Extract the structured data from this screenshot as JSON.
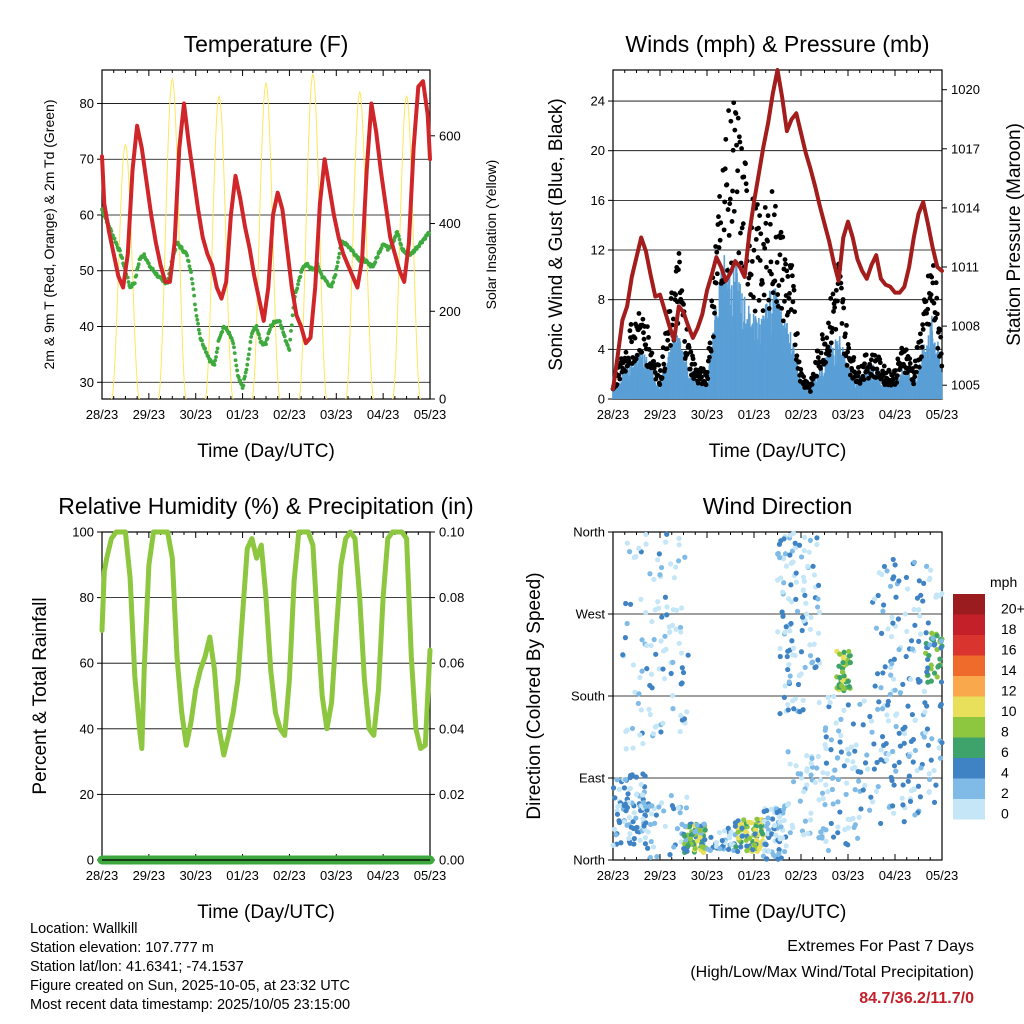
{
  "panels": [
    {
      "id": "temperature",
      "title": "Temperature (F)",
      "xlabel": "Time (Day/UTC)",
      "ylabel_left": "2m & 9m T (Red, Orange) & 2m Td (Green)",
      "ylabel_right": "Solar Insolation (Yellow)",
      "yticks_left": [
        "30",
        "40",
        "50",
        "60",
        "70",
        "80"
      ],
      "yticks_right": [
        "0",
        "200",
        "400",
        "600"
      ]
    },
    {
      "id": "winds",
      "title": "Winds (mph) & Pressure (mb)",
      "xlabel": "Time (Day/UTC)",
      "ylabel_left": "Sonic Wind & Gust (Blue, Black)",
      "ylabel_right": "Station Pressure (Maroon)",
      "yticks_left": [
        "0",
        "4",
        "8",
        "12",
        "16",
        "20",
        "24"
      ],
      "yticks_right": [
        "1005",
        "1008",
        "1011",
        "1014",
        "1017",
        "1020"
      ]
    },
    {
      "id": "humidity",
      "title": "Relative Humidity (%) & Precipitation (in)",
      "xlabel": "Time (Day/UTC)",
      "ylabel_left": "Percent & Total Rainfall",
      "ylabel_right": "",
      "yticks_left": [
        "0",
        "20",
        "40",
        "60",
        "80",
        "100"
      ],
      "yticks_right": [
        "0.00",
        "0.02",
        "0.04",
        "0.06",
        "0.08",
        "0.10"
      ]
    },
    {
      "id": "direction",
      "title": "Wind Direction",
      "xlabel": "Time (Day/UTC)",
      "ylabel_left": "Direction (Colored By Speed)",
      "ylabel_right": "",
      "yticks_left": [
        "North",
        "East",
        "South",
        "West",
        "North"
      ],
      "yticks_right": []
    }
  ],
  "chart_data": [
    {
      "type": "line",
      "title": "Temperature (F)",
      "x_ticks": [
        "28/23",
        "29/23",
        "30/23",
        "01/23",
        "02/23",
        "03/23",
        "04/23",
        "05/23"
      ],
      "xlim": [
        0,
        7
      ],
      "ylim": [
        27,
        86
      ],
      "y2lim": [
        0,
        750
      ],
      "series": [
        {
          "name": "2m T",
          "color": "#d0262a",
          "axis": "left",
          "x": [
            0,
            0.05,
            0.15,
            0.25,
            0.35,
            0.45,
            0.55,
            0.65,
            0.75,
            0.85,
            0.95,
            1.05,
            1.15,
            1.25,
            1.35,
            1.45,
            1.55,
            1.65,
            1.75,
            1.85,
            1.95,
            2.05,
            2.15,
            2.25,
            2.35,
            2.45,
            2.55,
            2.65,
            2.75,
            2.85,
            2.95,
            3.05,
            3.15,
            3.25,
            3.35,
            3.45,
            3.55,
            3.65,
            3.75,
            3.85,
            3.95,
            4.05,
            4.15,
            4.25,
            4.35,
            4.45,
            4.55,
            4.65,
            4.75,
            4.85,
            4.95,
            5.05,
            5.15,
            5.25,
            5.35,
            5.45,
            5.55,
            5.65,
            5.75,
            5.85,
            5.95,
            6.05,
            6.15,
            6.25,
            6.35,
            6.45,
            6.55,
            6.65,
            6.75,
            6.85,
            6.95,
            7
          ],
          "values": [
            70.5,
            62,
            57,
            53,
            49,
            47,
            53,
            68,
            76,
            72,
            66,
            60,
            55,
            51,
            48,
            48,
            55,
            72,
            80,
            73,
            67,
            61,
            56,
            53,
            51,
            47,
            45,
            48,
            60,
            67,
            63,
            58,
            54,
            49,
            45,
            41,
            47,
            60,
            64,
            61,
            54,
            47,
            42,
            40,
            37,
            38,
            47,
            62,
            70,
            65,
            60,
            56,
            53,
            51,
            49,
            47,
            52,
            68,
            80,
            75,
            68,
            62,
            56,
            53,
            50,
            48,
            55,
            72,
            83,
            84,
            78,
            70
          ]
        },
        {
          "name": "2m Td",
          "color": "#3eaa3e",
          "axis": "left",
          "x": [
            0,
            0.1,
            0.2,
            0.3,
            0.4,
            0.5,
            0.6,
            0.7,
            0.8,
            0.9,
            1.0,
            1.1,
            1.2,
            1.3,
            1.4,
            1.5,
            1.6,
            1.7,
            1.8,
            1.9,
            2.0,
            2.1,
            2.2,
            2.3,
            2.4,
            2.5,
            2.6,
            2.7,
            2.8,
            2.9,
            3.0,
            3.1,
            3.2,
            3.3,
            3.4,
            3.5,
            3.6,
            3.7,
            3.8,
            3.9,
            4.0,
            4.1,
            4.2,
            4.3,
            4.4,
            4.5,
            4.6,
            4.7,
            4.8,
            4.9,
            5.0,
            5.1,
            5.2,
            5.3,
            5.4,
            5.5,
            5.6,
            5.7,
            5.8,
            5.9,
            6.0,
            6.1,
            6.2,
            6.3,
            6.4,
            6.5,
            6.6,
            6.7,
            6.8,
            6.9,
            7.0
          ],
          "values": [
            61,
            59,
            57,
            55,
            53,
            50,
            47,
            48,
            52,
            53,
            51,
            50,
            49,
            48,
            48,
            52,
            55,
            54,
            53,
            50,
            43,
            38,
            36,
            34,
            33,
            38,
            40,
            39,
            37,
            31,
            29,
            33,
            39,
            40,
            37,
            37,
            40,
            41,
            41,
            38,
            36,
            45,
            48,
            51,
            51,
            50,
            51,
            49,
            48,
            47,
            50,
            55,
            55,
            54,
            53,
            52,
            52,
            51,
            51,
            53,
            55,
            54,
            55,
            57,
            54,
            53,
            53,
            54,
            55,
            56,
            57
          ]
        },
        {
          "name": "Solar Insolation",
          "color": "#ffe65a",
          "axis": "right",
          "peaks_x": [
            0.5,
            1.5,
            2.5,
            3.5,
            4.5,
            5.5,
            6.5
          ],
          "peaks_y": [
            580,
            730,
            690,
            720,
            740,
            700,
            690
          ]
        }
      ]
    },
    {
      "type": "line",
      "title": "Winds (mph) & Pressure (mb)",
      "x_ticks": [
        "28/23",
        "29/23",
        "30/23",
        "01/23",
        "02/23",
        "03/23",
        "04/23",
        "05/23"
      ],
      "xlim": [
        0,
        7
      ],
      "ylim": [
        0,
        26.5
      ],
      "y2lim": [
        1004.3,
        1021.0
      ],
      "series": [
        {
          "name": "Station Pressure",
          "color": "#a31d1d",
          "axis": "right",
          "x": [
            0,
            0.1,
            0.2,
            0.3,
            0.4,
            0.5,
            0.6,
            0.7,
            0.8,
            0.9,
            1.0,
            1.1,
            1.2,
            1.3,
            1.4,
            1.5,
            1.6,
            1.7,
            1.8,
            1.9,
            2.0,
            2.1,
            2.2,
            2.3,
            2.4,
            2.5,
            2.6,
            2.7,
            2.8,
            2.9,
            3.0,
            3.1,
            3.2,
            3.3,
            3.4,
            3.5,
            3.6,
            3.7,
            3.8,
            3.9,
            4.0,
            4.1,
            4.2,
            4.3,
            4.4,
            4.5,
            4.6,
            4.7,
            4.8,
            4.9,
            5.0,
            5.1,
            5.2,
            5.3,
            5.4,
            5.5,
            5.6,
            5.7,
            5.8,
            5.9,
            6.0,
            6.1,
            6.2,
            6.3,
            6.4,
            6.5,
            6.6,
            6.7,
            6.8,
            6.9,
            7.0
          ],
          "values": [
            1004.8,
            1006.5,
            1008.3,
            1009.0,
            1010.5,
            1011.5,
            1012.5,
            1011.8,
            1010.6,
            1009.5,
            1009.6,
            1008.8,
            1008.0,
            1007.3,
            1009.0,
            1008.7,
            1008.0,
            1007.4,
            1007.9,
            1008.6,
            1009.8,
            1010.6,
            1011.5,
            1011.0,
            1010.3,
            1010.7,
            1011.3,
            1011.0,
            1010.5,
            1012.7,
            1014.3,
            1015.7,
            1017.1,
            1018.3,
            1019.8,
            1021.0,
            1019.6,
            1017.9,
            1018.5,
            1018.8,
            1017.8,
            1016.8,
            1016.0,
            1015.1,
            1014.1,
            1013.2,
            1012.3,
            1011.2,
            1010.3,
            1012.5,
            1013.3,
            1012.5,
            1011.4,
            1010.8,
            1010.4,
            1011.1,
            1011.6,
            1010.4,
            1010.1,
            1010.0,
            1009.7,
            1009.7,
            1010.0,
            1011.0,
            1012.5,
            1013.7,
            1014.3,
            1013.2,
            1012.0,
            1011.0,
            1010.8
          ]
        },
        {
          "name": "Sonic Wind",
          "color": "#5a9fd6",
          "axis": "left",
          "x": [
            0,
            0.2,
            0.4,
            0.6,
            0.8,
            1.0,
            1.2,
            1.4,
            1.6,
            1.8,
            2.0,
            2.2,
            2.4,
            2.6,
            2.8,
            3.0,
            3.2,
            3.4,
            3.6,
            3.8,
            4.0,
            4.2,
            4.4,
            4.6,
            4.8,
            5.0,
            5.2,
            5.4,
            5.6,
            5.8,
            6.0,
            6.2,
            6.4,
            6.6,
            6.8,
            7.0
          ],
          "values": [
            0.5,
            1.5,
            2.5,
            3,
            2,
            1,
            3,
            4,
            2,
            1,
            1,
            6,
            9,
            8,
            6,
            5,
            5,
            7,
            5,
            4,
            1,
            0.5,
            2,
            3,
            4,
            2,
            1,
            2,
            2,
            1,
            1,
            2,
            1,
            3,
            5,
            2
          ]
        },
        {
          "name": "Gust",
          "color": "#000000",
          "axis": "left",
          "x": [
            0,
            0.2,
            0.4,
            0.6,
            0.8,
            1.0,
            1.2,
            1.4,
            1.6,
            1.8,
            2.0,
            2.2,
            2.4,
            2.6,
            2.8,
            3.0,
            3.2,
            3.4,
            3.6,
            3.8,
            4.0,
            4.2,
            4.4,
            4.6,
            4.8,
            5.0,
            5.2,
            5.4,
            5.6,
            5.8,
            6.0,
            6.2,
            6.4,
            6.6,
            6.8,
            7.0
          ],
          "values": [
            1,
            3,
            5,
            6,
            4,
            2,
            6,
            10,
            4,
            2,
            2,
            12,
            18,
            20,
            16,
            13,
            12,
            14,
            11,
            9,
            2,
            1,
            4,
            6,
            10,
            4,
            2,
            3,
            3,
            2,
            2,
            4,
            2,
            6,
            10,
            4
          ]
        }
      ]
    },
    {
      "type": "line",
      "title": "Relative Humidity (%) & Precipitation (in)",
      "x_ticks": [
        "28/23",
        "29/23",
        "30/23",
        "01/23",
        "02/23",
        "03/23",
        "04/23",
        "05/23"
      ],
      "xlim": [
        0,
        7
      ],
      "ylim": [
        0,
        100
      ],
      "y2lim": [
        0,
        0.1
      ],
      "series": [
        {
          "name": "Relative Humidity",
          "color": "#8dc63f",
          "axis": "left",
          "x": [
            0,
            0.05,
            0.1,
            0.2,
            0.3,
            0.4,
            0.5,
            0.6,
            0.7,
            0.8,
            0.85,
            0.9,
            1.0,
            1.1,
            1.2,
            1.3,
            1.4,
            1.5,
            1.6,
            1.7,
            1.8,
            1.9,
            2.0,
            2.1,
            2.2,
            2.3,
            2.4,
            2.5,
            2.6,
            2.7,
            2.8,
            2.9,
            3.0,
            3.1,
            3.2,
            3.3,
            3.4,
            3.5,
            3.6,
            3.7,
            3.8,
            3.9,
            4.0,
            4.1,
            4.2,
            4.3,
            4.4,
            4.5,
            4.6,
            4.7,
            4.8,
            4.9,
            5.0,
            5.1,
            5.2,
            5.3,
            5.4,
            5.5,
            5.6,
            5.7,
            5.8,
            5.9,
            6.0,
            6.1,
            6.2,
            6.3,
            6.4,
            6.5,
            6.6,
            6.7,
            6.8,
            6.9,
            7.0
          ],
          "values": [
            70,
            88,
            92,
            98,
            100,
            100,
            100,
            86,
            56,
            40,
            34,
            58,
            90,
            100,
            100,
            100,
            100,
            92,
            62,
            45,
            35,
            42,
            52,
            58,
            62,
            68,
            58,
            40,
            32,
            38,
            45,
            55,
            75,
            95,
            98,
            92,
            96,
            80,
            58,
            45,
            40,
            38,
            55,
            85,
            100,
            100,
            100,
            96,
            72,
            50,
            40,
            48,
            70,
            90,
            98,
            100,
            98,
            80,
            55,
            40,
            38,
            52,
            80,
            98,
            100,
            100,
            100,
            98,
            62,
            40,
            34,
            35,
            64
          ]
        },
        {
          "name": "Total Rainfall",
          "color": "#3ea83e",
          "axis": "right",
          "x": [
            0,
            7
          ],
          "values": [
            0,
            0
          ]
        }
      ]
    },
    {
      "type": "scatter",
      "title": "Wind Direction",
      "x_ticks": [
        "28/23",
        "29/23",
        "30/23",
        "01/23",
        "02/23",
        "03/23",
        "04/23",
        "05/23"
      ],
      "xlim": [
        0,
        7
      ],
      "ylim": [
        0,
        360
      ],
      "y_categories": [
        "North",
        "East",
        "South",
        "West",
        "North"
      ],
      "colorbar": {
        "title": "mph",
        "labels": [
          "20+",
          "18",
          "16",
          "14",
          "12",
          "10",
          "8",
          "6",
          "4",
          "2",
          "0"
        ],
        "colors": [
          "#9b1c1f",
          "#c3202a",
          "#d9342e",
          "#ee6b2b",
          "#f9a94b",
          "#e8e05a",
          "#8dc63f",
          "#3ea36b",
          "#3f83c4",
          "#7fbbe6",
          "#c4e6f7"
        ]
      },
      "clusters": [
        {
          "x": [
            0.0,
            0.6
          ],
          "y": [
            20,
            90
          ],
          "speed": "2-6"
        },
        {
          "x": [
            0.3,
            1.5
          ],
          "y": [
            150,
            360
          ],
          "speed": "0-4"
        },
        {
          "x": [
            1.5,
            2.0
          ],
          "y": [
            10,
            40
          ],
          "speed": "6-10"
        },
        {
          "x": [
            2.6,
            3.2
          ],
          "y": [
            10,
            40
          ],
          "speed": "6-10"
        },
        {
          "x": [
            3.2,
            3.7
          ],
          "y": [
            0,
            60
          ],
          "speed": "2-6"
        },
        {
          "x": [
            3.6,
            4.4
          ],
          "y": [
            180,
            360
          ],
          "speed": "0-4"
        },
        {
          "x": [
            4.8,
            5.0
          ],
          "y": [
            190,
            220
          ],
          "speed": "8-10"
        },
        {
          "x": [
            5.5,
            6.5
          ],
          "y": [
            40,
            320
          ],
          "speed": "0-4"
        },
        {
          "x": [
            6.7,
            7.0
          ],
          "y": [
            200,
            240
          ],
          "speed": "6-8"
        }
      ]
    }
  ],
  "footer": {
    "location": "Location: Wallkill",
    "elevation": "Station elevation: 107.777 m",
    "latlon": "Station lat/lon: 41.6341; -74.1537",
    "created": "Figure created on Sun, 2025-10-05, at 23:32 UTC",
    "recent": "Most recent data timestamp: 2025/10/05 23:15:00"
  },
  "extremes": {
    "title": "Extremes For Past 7 Days",
    "subtitle": "(High/Low/Max Wind/Total Precipitation)",
    "values": "84.7/36.2/11.7/0"
  }
}
